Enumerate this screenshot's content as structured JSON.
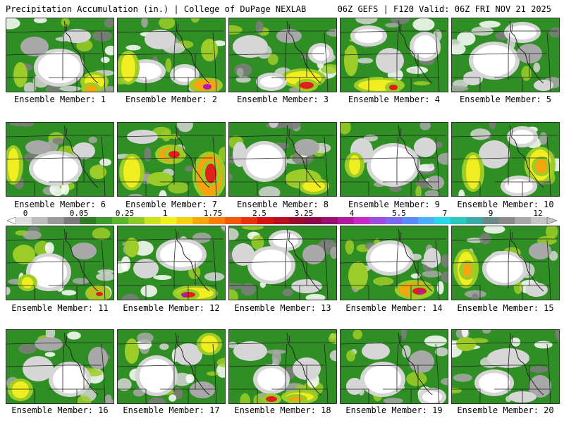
{
  "header": {
    "title_left": "Precipitation Accumulation (in.) | College of DuPage NEXLAB",
    "title_right": "06Z GEFS | F120 Valid: 06Z FRI NOV 21 2025"
  },
  "colorbar": {
    "labels": [
      "0",
      "0.05",
      "0.25",
      "1",
      "1.75",
      "2.5",
      "3.25",
      "4",
      "5.5",
      "7",
      "9",
      "12"
    ],
    "colors": [
      "#dcdcdc",
      "#bdbdbd",
      "#9a9a9a",
      "#7a7a7a",
      "#2e7d22",
      "#3d9a2c",
      "#5ab52f",
      "#8ccc2a",
      "#c8e31c",
      "#f2f21a",
      "#f5cf10",
      "#f7a70c",
      "#f77f0a",
      "#f05a0a",
      "#e8320e",
      "#d41212",
      "#b80f1e",
      "#9a0c2e",
      "#8a0a4c",
      "#9a1070",
      "#b01a9c",
      "#c82ac8",
      "#a04ae0",
      "#7a6af0",
      "#5a8aff",
      "#4ab0ff",
      "#2ad8e8",
      "#2ac8c0",
      "#3aaaa8",
      "#6a8a8a",
      "#8a8a8a",
      "#a8a8a8",
      "#c4c4c4"
    ]
  },
  "legend_colors": {
    "white": "#ffffff",
    "light_gray": "#d6d6d6",
    "gray": "#a8a8a8",
    "dark_gray": "#7e7e7e",
    "green": "#2f8f25",
    "yellow_green": "#9ccc28",
    "yellow": "#f0ee20",
    "orange": "#f6a40e",
    "red": "#e0201a",
    "magenta": "#b01ab0",
    "border_line": "#222222"
  },
  "panels": [
    {
      "label": "Ensemble Member: 1"
    },
    {
      "label": "Ensemble Member: 2"
    },
    {
      "label": "Ensemble Member: 3"
    },
    {
      "label": "Ensemble Member: 4"
    },
    {
      "label": "Ensemble Member: 5"
    },
    {
      "label": "Ensemble Member: 6"
    },
    {
      "label": "Ensemble Member: 7"
    },
    {
      "label": "Ensemble Member: 8"
    },
    {
      "label": "Ensemble Member: 9"
    },
    {
      "label": "Ensemble Member: 10"
    },
    {
      "label": "Ensemble Member: 11"
    },
    {
      "label": "Ensemble Member: 12"
    },
    {
      "label": "Ensemble Member: 13"
    },
    {
      "label": "Ensemble Member: 14"
    },
    {
      "label": "Ensemble Member: 15"
    },
    {
      "label": "Ensemble Member: 16"
    },
    {
      "label": "Ensemble Member: 17"
    },
    {
      "label": "Ensemble Member: 18"
    },
    {
      "label": "Ensemble Member: 19"
    },
    {
      "label": "Ensemble Member: 20"
    }
  ]
}
